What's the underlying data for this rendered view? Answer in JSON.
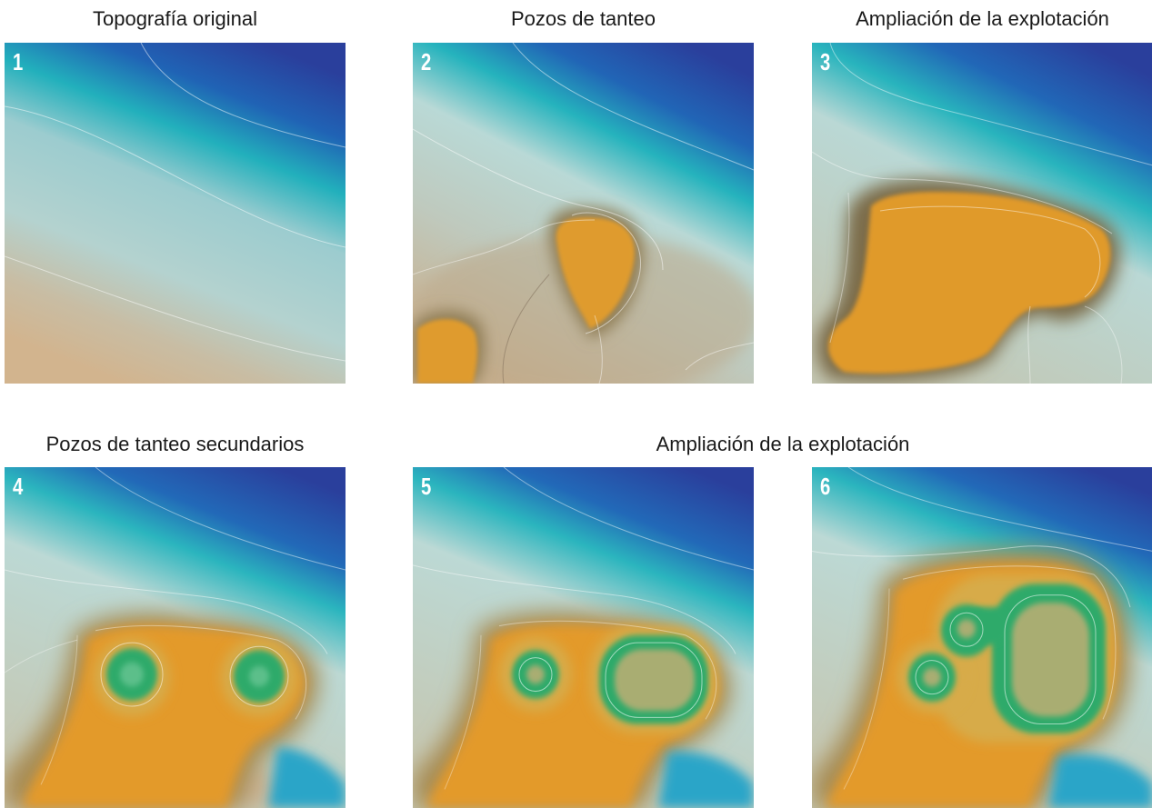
{
  "captions": {
    "c1": "Topografía original",
    "c2": "Pozos de tanteo",
    "c3": "Ampliación de la explotación",
    "c4": "Pozos de tanteo secundarios",
    "c56": "Ampliación de la explotación"
  },
  "panels": [
    {
      "number": "1"
    },
    {
      "number": "2"
    },
    {
      "number": "3"
    },
    {
      "number": "4"
    },
    {
      "number": "5"
    },
    {
      "number": "6"
    }
  ],
  "colors": {
    "deep_blue": "#2a3f9c",
    "cyan": "#1fb3bd",
    "pale_blue": "#b9d8d6",
    "beige": "#cdb595",
    "orange": "#e09a2a",
    "green": "#2ea86a",
    "olive": "#a9ad72"
  }
}
